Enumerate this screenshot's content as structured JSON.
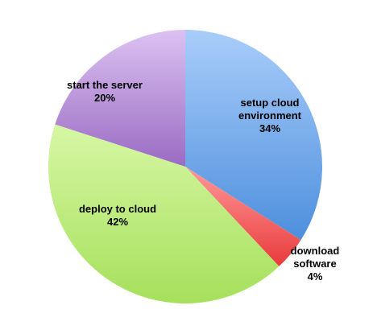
{
  "chart_data": {
    "type": "pie",
    "start_angle_deg": 0,
    "direction": "clockwise",
    "slices": [
      {
        "label_lines": [
          "setup cloud",
          "environment"
        ],
        "value": 34,
        "percent_label": "34%",
        "color_light": "#a9cdfa",
        "color_dark": "#4d8fdd"
      },
      {
        "label_lines": [
          "download",
          "software"
        ],
        "value": 4,
        "percent_label": "4%",
        "color_light": "#ff9a9a",
        "color_dark": "#e93a3a"
      },
      {
        "label_lines": [
          "deploy to cloud"
        ],
        "value": 42,
        "percent_label": "42%",
        "color_light": "#d6f7a4",
        "color_dark": "#a6e05b"
      },
      {
        "label_lines": [
          "start the server"
        ],
        "value": 20,
        "percent_label": "20%",
        "color_light": "#dcc2f2",
        "color_dark": "#9a6bc3"
      }
    ],
    "title": "",
    "legend": "none"
  }
}
